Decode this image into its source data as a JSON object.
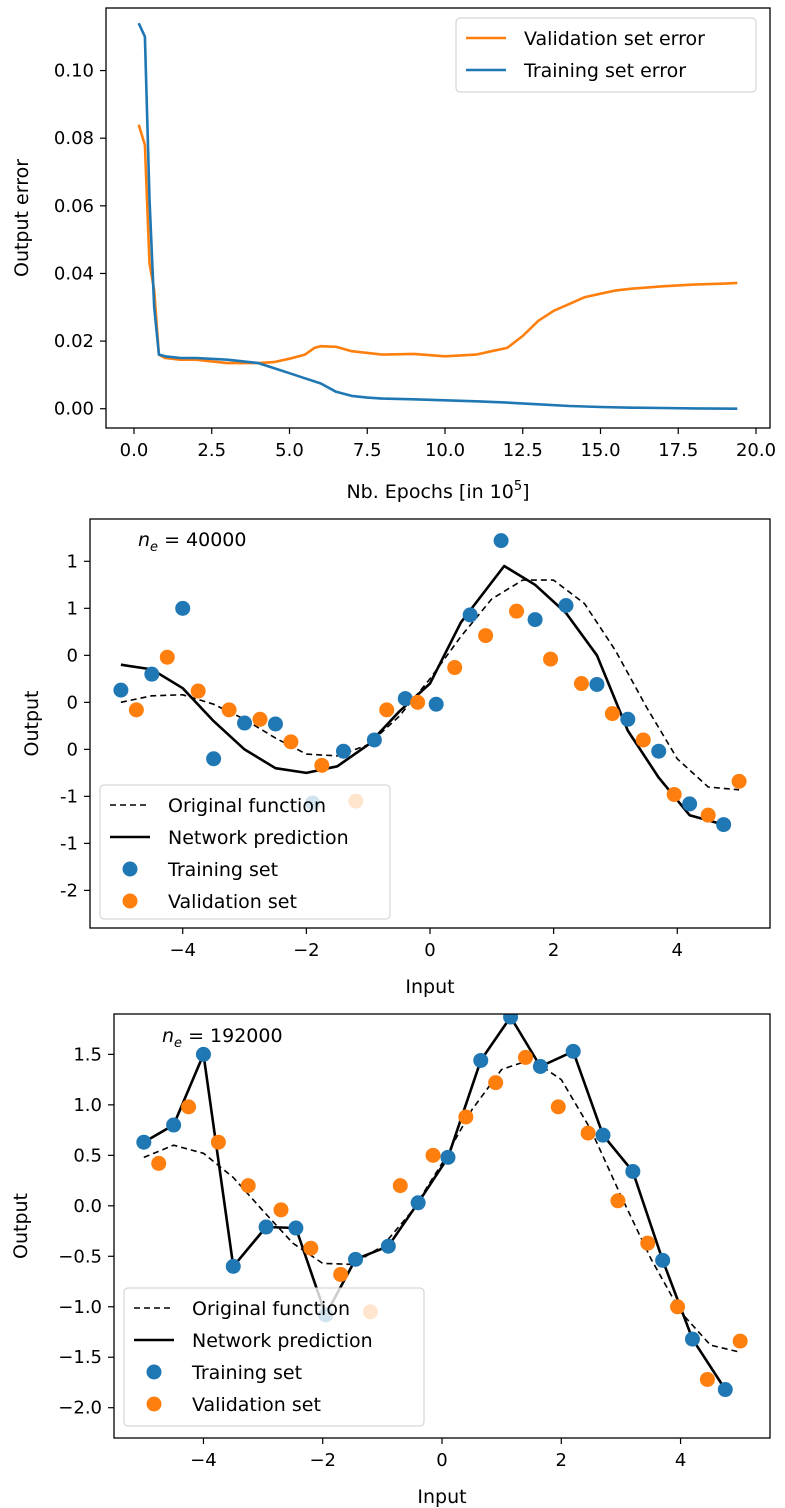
{
  "colors": {
    "orange": "#ff7f0e",
    "blue": "#1f77b4",
    "black": "#000000"
  },
  "chart_data": [
    {
      "type": "line",
      "xlabel_main": "Nb. Epochs [in 10",
      "xlabel_sup": "5",
      "xlabel_end": "]",
      "ylabel": "Output error",
      "xlim": [
        -0.9,
        20.45
      ],
      "ylim": [
        -0.0057,
        0.1185
      ],
      "xticks": [
        0,
        2.5,
        5,
        7.5,
        10,
        12.5,
        15,
        17.5,
        20
      ],
      "xtick_labels": [
        "0.0",
        "2.5",
        "5.0",
        "7.5",
        "10.0",
        "12.5",
        "15.0",
        "17.5",
        "20.0"
      ],
      "yticks": [
        0,
        0.02,
        0.04,
        0.06,
        0.08,
        0.1
      ],
      "ytick_labels": [
        "0.00",
        "0.02",
        "0.04",
        "0.06",
        "0.08",
        "0.10"
      ],
      "legend": "top-right",
      "series": [
        {
          "name": "Validation set error",
          "color": "orange",
          "x": [
            0.15,
            0.35,
            0.5,
            0.65,
            0.8,
            1.0,
            1.5,
            2.0,
            2.5,
            3.0,
            3.5,
            4.0,
            4.5,
            5.0,
            5.5,
            5.8,
            6.0,
            6.5,
            7.0,
            8.0,
            9.0,
            10.0,
            11.0,
            11.5,
            12.0,
            12.5,
            13.0,
            13.5,
            14.0,
            14.5,
            15.0,
            15.5,
            16.0,
            17.0,
            18.0,
            19.0,
            19.4
          ],
          "y": [
            0.084,
            0.078,
            0.043,
            0.035,
            0.016,
            0.015,
            0.0145,
            0.0145,
            0.014,
            0.0135,
            0.0135,
            0.0135,
            0.0138,
            0.0148,
            0.016,
            0.018,
            0.0185,
            0.0183,
            0.017,
            0.016,
            0.0162,
            0.0155,
            0.016,
            0.017,
            0.018,
            0.0215,
            0.026,
            0.029,
            0.031,
            0.033,
            0.034,
            0.035,
            0.0355,
            0.0362,
            0.0367,
            0.037,
            0.0372
          ]
        },
        {
          "name": "Training set error",
          "color": "blue",
          "x": [
            0.15,
            0.35,
            0.5,
            0.65,
            0.8,
            1.0,
            1.5,
            2.0,
            3.0,
            4.0,
            4.5,
            5.0,
            5.5,
            6.0,
            6.5,
            7.0,
            7.5,
            8.0,
            9.0,
            10.0,
            11.0,
            12.0,
            13.0,
            14.0,
            15.0,
            16.0,
            17.0,
            18.0,
            19.4
          ],
          "y": [
            0.114,
            0.11,
            0.062,
            0.03,
            0.016,
            0.0155,
            0.015,
            0.015,
            0.0145,
            0.0135,
            0.012,
            0.0105,
            0.009,
            0.0075,
            0.005,
            0.0038,
            0.0033,
            0.003,
            0.0028,
            0.0025,
            0.0022,
            0.0018,
            0.0013,
            0.0008,
            0.0005,
            0.0003,
            0.0002,
            0.0001,
            0.0
          ]
        }
      ]
    },
    {
      "type": "scatter",
      "annotation_main": "n",
      "annotation_sub": "e",
      "annotation_rest": " = 40000",
      "xlabel": "Input",
      "ylabel": "Output",
      "xlim": [
        -5.5,
        5.5
      ],
      "ylim": [
        -2.4,
        1.95
      ],
      "xticks": [
        -4,
        -2,
        0,
        2,
        4
      ],
      "xtick_labels": [
        "−4",
        "−2",
        "0",
        "2",
        "4"
      ],
      "yticks": [
        -2,
        -1.5,
        -1,
        -0.5,
        0,
        0.5,
        1,
        1.5
      ],
      "ytick_labels": [
        "-2",
        "-1",
        "-1",
        "0",
        "0",
        "0",
        "1",
        "1"
      ],
      "legend": "bottom-left",
      "series": [
        {
          "name": "Original function",
          "kind": "dashed-line",
          "color": "black",
          "x": [
            -5,
            -4.5,
            -4,
            -3.5,
            -3,
            -2.5,
            -2,
            -1.5,
            -1,
            -0.5,
            0,
            0.5,
            1,
            1.5,
            2,
            2.5,
            3,
            3.5,
            4,
            4.5,
            5
          ],
          "y": [
            0.0,
            0.07,
            0.08,
            -0.02,
            -0.18,
            -0.38,
            -0.55,
            -0.57,
            -0.45,
            -0.15,
            0.25,
            0.7,
            1.1,
            1.3,
            1.3,
            1.05,
            0.55,
            -0.05,
            -0.6,
            -0.9,
            -0.93
          ]
        },
        {
          "name": "Network prediction",
          "kind": "line",
          "color": "black",
          "x": [
            -5,
            -4.5,
            -4,
            -3.5,
            -3,
            -2.5,
            -2,
            -1.5,
            -1,
            -0.5,
            0,
            0.5,
            1.2,
            1.7,
            2.2,
            2.7,
            3.2,
            3.7,
            4.2,
            4.75
          ],
          "y": [
            0.4,
            0.35,
            0.15,
            -0.2,
            -0.5,
            -0.7,
            -0.75,
            -0.68,
            -0.45,
            -0.1,
            0.2,
            0.85,
            1.45,
            1.25,
            0.95,
            0.5,
            -0.3,
            -0.8,
            -1.2,
            -1.3
          ]
        },
        {
          "name": "Training set",
          "kind": "points",
          "color": "blue",
          "x": [
            -5,
            -4.5,
            -4,
            -3.5,
            -3,
            -2.5,
            -1.9,
            -1.4,
            -0.9,
            -0.4,
            0.1,
            0.65,
            1.15,
            1.7,
            2.2,
            2.7,
            3.2,
            3.7,
            4.2,
            4.75
          ],
          "y": [
            0.13,
            0.3,
            1.0,
            -0.6,
            -0.22,
            -0.23,
            -1.07,
            -0.52,
            -0.4,
            0.04,
            -0.02,
            0.93,
            1.72,
            0.88,
            1.03,
            0.19,
            -0.18,
            -0.52,
            -1.08,
            -1.3
          ]
        },
        {
          "name": "Validation set",
          "kind": "points",
          "color": "orange",
          "x": [
            -4.75,
            -4.25,
            -3.75,
            -3.25,
            -2.75,
            -2.25,
            -1.75,
            -1.2,
            -0.7,
            -0.2,
            0.4,
            0.9,
            1.4,
            1.95,
            2.45,
            2.95,
            3.45,
            3.95,
            4.5,
            5.0
          ],
          "y": [
            -0.08,
            0.48,
            0.12,
            -0.08,
            -0.18,
            -0.42,
            -0.67,
            -1.05,
            -0.08,
            0.0,
            0.37,
            0.71,
            0.97,
            0.46,
            0.2,
            -0.12,
            -0.4,
            -0.98,
            -1.2,
            -0.84
          ]
        }
      ]
    },
    {
      "type": "scatter",
      "annotation_main": "n",
      "annotation_sub": "e",
      "annotation_rest": " = 192000",
      "xlabel": "Input",
      "ylabel": "Output",
      "xlim": [
        -5.5,
        5.5
      ],
      "ylim": [
        -2.3,
        1.9
      ],
      "xticks": [
        -4,
        -2,
        0,
        2,
        4
      ],
      "xtick_labels": [
        "−4",
        "−2",
        "0",
        "2",
        "4"
      ],
      "yticks": [
        -2.0,
        -1.5,
        -1.0,
        -0.5,
        0.0,
        0.5,
        1.0,
        1.5
      ],
      "ytick_labels": [
        "−2.0",
        "−1.5",
        "−1.0",
        "−0.5",
        "0.0",
        "0.5",
        "1.0",
        "1.5"
      ],
      "legend": "bottom-left",
      "series": [
        {
          "name": "Original function",
          "kind": "dashed-line",
          "color": "black",
          "x": [
            -5,
            -4.5,
            -4,
            -3.5,
            -3,
            -2.5,
            -2,
            -1.5,
            -1,
            -0.5,
            0,
            0.5,
            1,
            1.5,
            2,
            2.5,
            3,
            3.5,
            4,
            4.5,
            5
          ],
          "y": [
            0.48,
            0.6,
            0.52,
            0.28,
            -0.05,
            -0.37,
            -0.57,
            -0.58,
            -0.4,
            -0.05,
            0.42,
            0.95,
            1.35,
            1.45,
            1.25,
            0.75,
            0.1,
            -0.52,
            -1.05,
            -1.38,
            -1.45
          ]
        },
        {
          "name": "Network prediction",
          "kind": "line",
          "color": "black",
          "x": [
            -5,
            -4.5,
            -4,
            -3.5,
            -2.95,
            -2.45,
            -1.95,
            -1.45,
            -0.9,
            -0.4,
            0.1,
            0.65,
            1.15,
            1.65,
            2.2,
            2.7,
            3.2,
            3.7,
            4.2,
            4.75
          ],
          "y": [
            0.63,
            0.8,
            1.5,
            -0.6,
            -0.21,
            -0.22,
            -1.08,
            -0.53,
            -0.4,
            0.03,
            0.48,
            1.44,
            1.87,
            1.38,
            1.53,
            0.7,
            0.34,
            -0.54,
            -1.32,
            -1.82
          ]
        },
        {
          "name": "Training set",
          "kind": "points",
          "color": "blue",
          "x": [
            -5,
            -4.5,
            -4,
            -3.5,
            -2.95,
            -2.45,
            -1.95,
            -1.45,
            -0.9,
            -0.4,
            0.1,
            0.65,
            1.15,
            1.65,
            2.2,
            2.7,
            3.2,
            3.7,
            4.2,
            4.75
          ],
          "y": [
            0.63,
            0.8,
            1.5,
            -0.6,
            -0.21,
            -0.22,
            -1.08,
            -0.53,
            -0.4,
            0.03,
            0.48,
            1.44,
            1.87,
            1.38,
            1.53,
            0.7,
            0.34,
            -0.54,
            -1.32,
            -1.82
          ]
        },
        {
          "name": "Validation set",
          "kind": "points",
          "color": "orange",
          "x": [
            -4.75,
            -4.25,
            -3.75,
            -3.25,
            -2.7,
            -2.2,
            -1.7,
            -1.2,
            -0.7,
            -0.15,
            0.4,
            0.9,
            1.4,
            1.95,
            2.45,
            2.95,
            3.45,
            3.95,
            4.45,
            5.0
          ],
          "y": [
            0.42,
            0.98,
            0.63,
            0.2,
            -0.04,
            -0.42,
            -0.68,
            -1.05,
            0.2,
            0.5,
            0.88,
            1.22,
            1.47,
            0.98,
            0.72,
            0.05,
            -0.37,
            -1.0,
            -1.72,
            -1.34
          ]
        }
      ]
    }
  ]
}
